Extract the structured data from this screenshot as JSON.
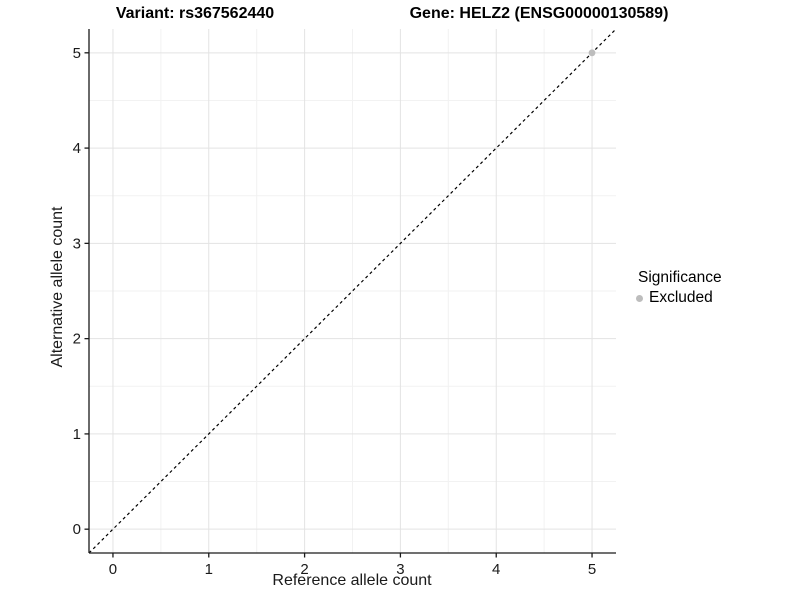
{
  "titles": {
    "left": "Variant: rs367562440",
    "right": "Gene: HELZ2 (ENSG00000130589)"
  },
  "chart_data": {
    "type": "scatter",
    "subplot_titles": [
      "Variant: rs367562440",
      "Gene: HELZ2 (ENSG00000130589)"
    ],
    "xlabel": "Reference allele count",
    "ylabel": "Alternative allele count",
    "xlim": [
      -0.25,
      5.25
    ],
    "ylim": [
      -0.25,
      5.25
    ],
    "x_ticks": [
      0,
      1,
      2,
      3,
      4,
      5
    ],
    "y_ticks": [
      0,
      1,
      2,
      3,
      4,
      5
    ],
    "x_minor_ticks": [
      0.5,
      1.5,
      2.5,
      3.5,
      4.5
    ],
    "y_minor_ticks": [
      0.5,
      1.5,
      2.5,
      3.5,
      4.5
    ],
    "grid": {
      "major": true,
      "minor": true
    },
    "points": [
      {
        "x": 5,
        "y": 5,
        "series": "Excluded"
      }
    ],
    "reference_line": {
      "type": "identity",
      "slope": 1,
      "intercept": 0,
      "style": "dashed"
    },
    "legend": {
      "title": "Significance",
      "position": "right",
      "entries": [
        {
          "label": "Excluded",
          "color": "#bdbdbd"
        }
      ]
    },
    "colors": {
      "excluded_point": "#bdbdbd",
      "grid_major": "#e3e3e3",
      "grid_minor": "#f2f2f2",
      "axis": "#1a1a1a",
      "dashed_line": "#000000",
      "tick_text": "#1a1a1a",
      "background": "#ffffff"
    }
  }
}
